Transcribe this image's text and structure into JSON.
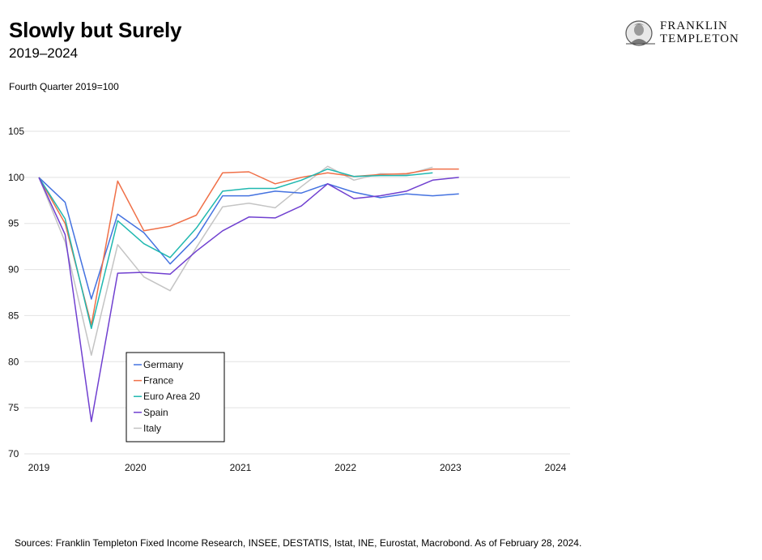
{
  "header": {
    "title": "Slowly but Surely",
    "subtitle": "2019–2024",
    "unit_note": "Fourth Quarter 2019=100"
  },
  "brand": {
    "line1": "FRANKLIN",
    "line2": "TEMPLETON",
    "icon": "franklin-portrait-seal"
  },
  "footer": {
    "source": "Sources: Franklin Templeton Fixed Income Research, INSEE, DESTATIS, Istat, INE, Eurostat, Macrobond. As of February 28, 2024."
  },
  "chart_data": {
    "type": "line",
    "xlim": [
      2019.0,
      2024.1
    ],
    "ylim": [
      70,
      105
    ],
    "y_ticks": [
      70,
      75,
      80,
      85,
      90,
      95,
      100,
      105
    ],
    "x_ticks": [
      {
        "label": "2019",
        "value": 2019.0
      },
      {
        "label": "2020",
        "value": 2019.92
      },
      {
        "label": "2021",
        "value": 2020.92
      },
      {
        "label": "2022",
        "value": 2021.92
      },
      {
        "label": "2023",
        "value": 2022.92
      },
      {
        "label": "2024",
        "value": 2023.92
      }
    ],
    "grid": true,
    "legend_position": "bottom-left",
    "x": [
      2019.0,
      2019.25,
      2019.5,
      2019.75,
      2020.0,
      2020.25,
      2020.5,
      2020.75,
      2021.0,
      2021.25,
      2021.5,
      2021.75,
      2022.0,
      2022.25,
      2022.5,
      2022.75,
      2023.0,
      2023.25
    ],
    "series": [
      {
        "name": "Germany",
        "color": "#4472e0",
        "values": [
          100,
          97.3,
          86.8,
          96.0,
          94.0,
          90.6,
          93.5,
          98.0,
          98.0,
          98.5,
          98.3,
          99.3,
          98.4,
          97.8,
          98.2,
          98.0,
          98.2,
          null
        ]
      },
      {
        "name": "France",
        "color": "#f07048",
        "values": [
          100,
          95.0,
          84.0,
          99.6,
          94.2,
          94.7,
          95.9,
          100.5,
          100.6,
          99.3,
          100.0,
          100.5,
          100.1,
          100.3,
          100.4,
          100.9,
          100.9,
          null
        ]
      },
      {
        "name": "Euro Area 20",
        "color": "#20b8b0",
        "values": [
          100,
          95.5,
          83.6,
          95.3,
          92.8,
          91.3,
          94.5,
          98.5,
          98.8,
          98.8,
          99.7,
          100.9,
          100.1,
          100.2,
          100.2,
          100.5,
          null,
          null
        ]
      },
      {
        "name": "Spain",
        "color": "#7040d0",
        "values": [
          100,
          93.8,
          73.5,
          89.6,
          89.7,
          89.5,
          92.0,
          94.2,
          95.7,
          95.6,
          96.9,
          99.3,
          97.7,
          98.0,
          98.5,
          99.7,
          100.0,
          null
        ]
      },
      {
        "name": "Italy",
        "color": "#c4c4c4",
        "values": [
          100,
          93.0,
          80.7,
          92.7,
          89.2,
          87.7,
          92.4,
          96.8,
          97.2,
          96.7,
          99.0,
          101.2,
          99.7,
          100.4,
          100.3,
          101.1,
          null,
          null
        ]
      }
    ]
  }
}
